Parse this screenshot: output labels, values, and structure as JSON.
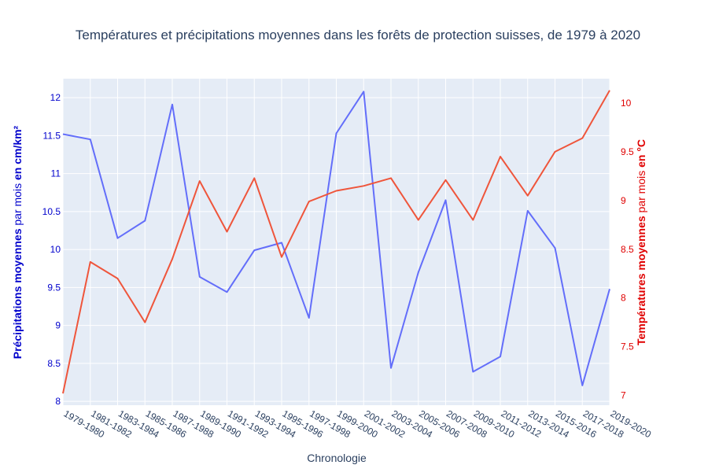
{
  "chart_data": {
    "type": "line",
    "title": "Températures et précipitations moyennes dans les forêts de protection suisses, de 1979 à 2020",
    "xlabel": "Chronologie",
    "ylabel_left": {
      "parts": [
        {
          "text": "Précipitations moyennes",
          "bold": true
        },
        {
          "text": " par mois ",
          "bold": false
        },
        {
          "text": "en cm/km²",
          "bold": true
        }
      ],
      "color": "#0000cc"
    },
    "ylabel_right": {
      "parts": [
        {
          "text": "Températures moyennes",
          "bold": true
        },
        {
          "text": " par mois ",
          "bold": false
        },
        {
          "text": "en °C",
          "bold": true
        }
      ],
      "color": "#e00000"
    },
    "categories": [
      "1979-1980",
      "1981-1982",
      "1983-1984",
      "1985-1986",
      "1987-1988",
      "1989-1990",
      "1991-1992",
      "1993-1994",
      "1995-1996",
      "1997-1998",
      "1999-2000",
      "2001-2002",
      "2003-2004",
      "2005-2006",
      "2007-2008",
      "2009-2010",
      "2011-2012",
      "2013-2014",
      "2015-2016",
      "2017-2018",
      "2019-2020"
    ],
    "y_left": {
      "range": [
        7.95,
        12.25
      ],
      "ticks": [
        8,
        8.5,
        9,
        9.5,
        10,
        10.5,
        11,
        11.5,
        12
      ],
      "tick_labels": [
        "8",
        "8.5",
        "9",
        "9.5",
        "10",
        "10.5",
        "11",
        "11.5",
        "12"
      ]
    },
    "y_right": {
      "range": [
        6.9,
        10.25
      ],
      "ticks": [
        7,
        7.5,
        8,
        8.5,
        9,
        9.5,
        10
      ],
      "tick_labels": [
        "7",
        "7.5",
        "8",
        "8.5",
        "9",
        "9.5",
        "10"
      ]
    },
    "series": [
      {
        "axis": "left",
        "color": "#636efa",
        "values": [
          11.52,
          11.45,
          10.15,
          10.38,
          11.91,
          9.64,
          9.44,
          9.99,
          10.09,
          9.1,
          11.53,
          12.08,
          8.44,
          9.7,
          10.65,
          8.39,
          8.59,
          10.51,
          10.02,
          8.21,
          9.48
        ]
      },
      {
        "axis": "right",
        "color": "#ef553b",
        "values": [
          7.02,
          8.37,
          8.2,
          7.75,
          8.4,
          9.2,
          8.68,
          9.23,
          8.42,
          8.99,
          9.1,
          9.15,
          9.23,
          8.8,
          9.21,
          8.8,
          9.45,
          9.05,
          9.5,
          9.64,
          10.13
        ]
      }
    ],
    "grid": true,
    "legend": "none"
  }
}
